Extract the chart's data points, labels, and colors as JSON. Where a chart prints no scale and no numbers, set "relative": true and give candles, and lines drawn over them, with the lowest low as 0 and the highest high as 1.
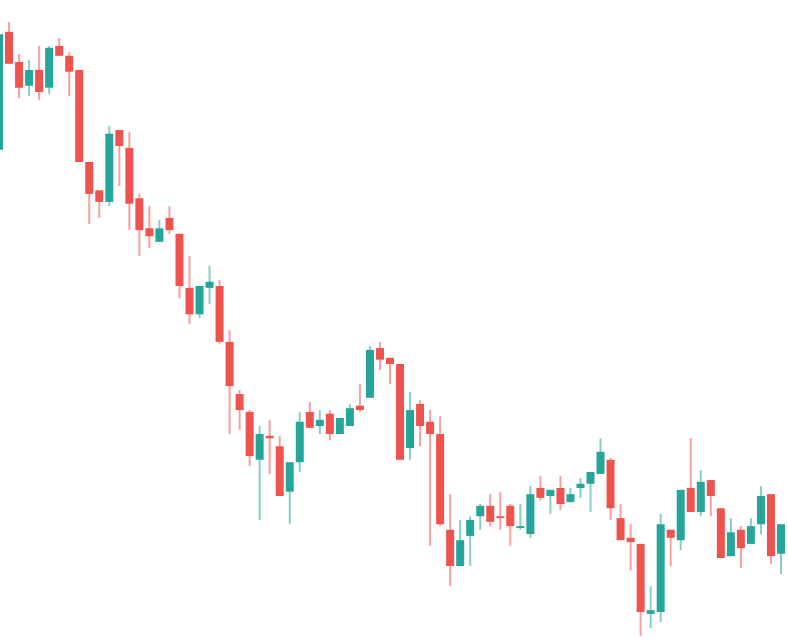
{
  "chart_data": {
    "type": "candlestick",
    "relative": true,
    "categories": [
      null,
      null,
      null,
      null,
      null,
      null,
      null,
      null,
      null,
      null,
      null,
      null,
      null,
      null,
      null,
      null,
      null,
      null,
      null,
      null,
      null,
      null,
      null,
      null,
      null,
      null,
      null,
      null,
      null,
      null,
      null,
      null,
      null,
      null,
      null,
      null,
      null,
      null,
      null,
      null,
      null,
      null,
      null,
      null,
      null,
      null,
      null,
      null,
      null,
      null,
      null,
      null,
      null,
      null,
      null,
      null,
      null,
      null,
      null,
      null,
      null,
      null,
      null,
      null,
      null,
      null,
      null,
      null,
      null,
      null,
      null,
      null,
      null,
      null,
      null,
      null,
      null,
      null,
      null
    ],
    "ohlc": [
      [
        0.792,
        0.98,
        0.792,
        0.98
      ],
      [
        0.984,
        1.0,
        0.932,
        0.932
      ],
      [
        0.935,
        0.948,
        0.876,
        0.893
      ],
      [
        0.896,
        0.938,
        0.879,
        0.922
      ],
      [
        0.922,
        0.961,
        0.873,
        0.886
      ],
      [
        0.893,
        0.961,
        0.883,
        0.958
      ],
      [
        0.961,
        0.974,
        0.945,
        0.945
      ],
      [
        0.945,
        0.951,
        0.879,
        0.919
      ],
      [
        0.922,
        0.922,
        0.772,
        0.772
      ],
      [
        0.772,
        0.772,
        0.671,
        0.72
      ],
      [
        0.726,
        0.726,
        0.681,
        0.707
      ],
      [
        0.707,
        0.831,
        0.7,
        0.818
      ],
      [
        0.824,
        0.824,
        0.733,
        0.798
      ],
      [
        0.795,
        0.821,
        0.661,
        0.704
      ],
      [
        0.713,
        0.72,
        0.619,
        0.661
      ],
      [
        0.664,
        0.7,
        0.632,
        0.651
      ],
      [
        0.642,
        0.678,
        0.642,
        0.664
      ],
      [
        0.681,
        0.7,
        0.655,
        0.661
      ],
      [
        0.655,
        0.655,
        0.55,
        0.57
      ],
      [
        0.567,
        0.619,
        0.508,
        0.524
      ],
      [
        0.524,
        0.57,
        0.518,
        0.57
      ],
      [
        0.567,
        0.603,
        0.541,
        0.577
      ],
      [
        0.57,
        0.58,
        0.476,
        0.479
      ],
      [
        0.479,
        0.498,
        0.329,
        0.407
      ],
      [
        0.394,
        0.401,
        0.336,
        0.368
      ],
      [
        0.365,
        0.368,
        0.277,
        0.293
      ],
      [
        0.287,
        0.342,
        0.189,
        0.329
      ],
      [
        0.326,
        0.352,
        0.264,
        0.322
      ],
      [
        0.309,
        0.326,
        0.228,
        0.228
      ],
      [
        0.235,
        0.283,
        0.182,
        0.283
      ],
      [
        0.283,
        0.365,
        0.267,
        0.349
      ],
      [
        0.365,
        0.381,
        0.339,
        0.339
      ],
      [
        0.342,
        0.368,
        0.329,
        0.352
      ],
      [
        0.362,
        0.368,
        0.319,
        0.329
      ],
      [
        0.329,
        0.355,
        0.329,
        0.355
      ],
      [
        0.342,
        0.378,
        0.342,
        0.371
      ],
      [
        0.375,
        0.41,
        0.365,
        0.368
      ],
      [
        0.388,
        0.472,
        0.388,
        0.466
      ],
      [
        0.469,
        0.479,
        0.433,
        0.45
      ],
      [
        0.453,
        0.453,
        0.41,
        0.443
      ],
      [
        0.443,
        0.443,
        0.287,
        0.287
      ],
      [
        0.306,
        0.397,
        0.287,
        0.368
      ],
      [
        0.378,
        0.384,
        0.309,
        0.342
      ],
      [
        0.349,
        0.368,
        0.147,
        0.329
      ],
      [
        0.329,
        0.358,
        0.179,
        0.182
      ],
      [
        0.173,
        0.231,
        0.081,
        0.114
      ],
      [
        0.114,
        0.189,
        0.114,
        0.156
      ],
      [
        0.163,
        0.195,
        0.114,
        0.189
      ],
      [
        0.195,
        0.215,
        0.173,
        0.212
      ],
      [
        0.212,
        0.231,
        0.179,
        0.186
      ],
      [
        0.195,
        0.235,
        0.173,
        0.192
      ],
      [
        0.212,
        0.215,
        0.147,
        0.179
      ],
      [
        0.176,
        0.215,
        0.173,
        0.179
      ],
      [
        0.166,
        0.244,
        0.16,
        0.231
      ],
      [
        0.241,
        0.261,
        0.221,
        0.225
      ],
      [
        0.228,
        0.238,
        0.199,
        0.238
      ],
      [
        0.241,
        0.261,
        0.205,
        0.215
      ],
      [
        0.218,
        0.241,
        0.218,
        0.231
      ],
      [
        0.241,
        0.257,
        0.225,
        0.248
      ],
      [
        0.248,
        0.267,
        0.202,
        0.267
      ],
      [
        0.264,
        0.322,
        0.264,
        0.3
      ],
      [
        0.287,
        0.29,
        0.189,
        0.208
      ],
      [
        0.192,
        0.215,
        0.156,
        0.156
      ],
      [
        0.16,
        0.182,
        0.107,
        0.153
      ],
      [
        0.15,
        0.15,
        0.0,
        0.039
      ],
      [
        0.036,
        0.081,
        0.013,
        0.042
      ],
      [
        0.039,
        0.199,
        0.023,
        0.182
      ],
      [
        0.173,
        0.173,
        0.114,
        0.16
      ],
      [
        0.156,
        0.238,
        0.14,
        0.238
      ],
      [
        0.241,
        0.322,
        0.202,
        0.202
      ],
      [
        0.202,
        0.27,
        0.195,
        0.251
      ],
      [
        0.254,
        0.254,
        0.195,
        0.228
      ],
      [
        0.208,
        0.208,
        0.127,
        0.127
      ],
      [
        0.13,
        0.192,
        0.13,
        0.169
      ],
      [
        0.173,
        0.179,
        0.111,
        0.143
      ],
      [
        0.15,
        0.192,
        0.15,
        0.179
      ],
      [
        0.182,
        0.244,
        0.166,
        0.228
      ],
      [
        0.231,
        0.231,
        0.117,
        0.13
      ],
      [
        0.134,
        0.182,
        0.101,
        0.182
      ]
    ],
    "colors": [
      "#26a69a",
      "#ef5350",
      "#ef5350",
      "#26a69a",
      "#ef5350",
      "#26a69a",
      "#ef5350",
      "#ef5350",
      "#ef5350",
      "#ef5350",
      "#ef5350",
      "#26a69a",
      "#ef5350",
      "#ef5350",
      "#ef5350",
      "#ef5350",
      "#26a69a",
      "#ef5350",
      "#ef5350",
      "#ef5350",
      "#26a69a",
      "#26a69a",
      "#ef5350",
      "#ef5350",
      "#ef5350",
      "#ef5350",
      "#26a69a",
      "#ef5350",
      "#ef5350",
      "#26a69a",
      "#26a69a",
      "#ef5350",
      "#26a69a",
      "#ef5350",
      "#26a69a",
      "#26a69a",
      "#ef5350",
      "#26a69a",
      "#ef5350",
      "#ef5350",
      "#ef5350",
      "#26a69a",
      "#ef5350",
      "#ef5350",
      "#ef5350",
      "#ef5350",
      "#26a69a",
      "#26a69a",
      "#26a69a",
      "#ef5350",
      "#ef5350",
      "#ef5350",
      "#26a69a",
      "#26a69a",
      "#ef5350",
      "#26a69a",
      "#ef5350",
      "#26a69a",
      "#26a69a",
      "#26a69a",
      "#26a69a",
      "#ef5350",
      "#ef5350",
      "#ef5350",
      "#ef5350",
      "#26a69a",
      "#26a69a",
      "#ef5350",
      "#26a69a",
      "#ef5350",
      "#26a69a",
      "#ef5350",
      "#ef5350",
      "#26a69a",
      "#ef5350",
      "#26a69a",
      "#26a69a",
      "#ef5350",
      "#26a69a"
    ]
  }
}
